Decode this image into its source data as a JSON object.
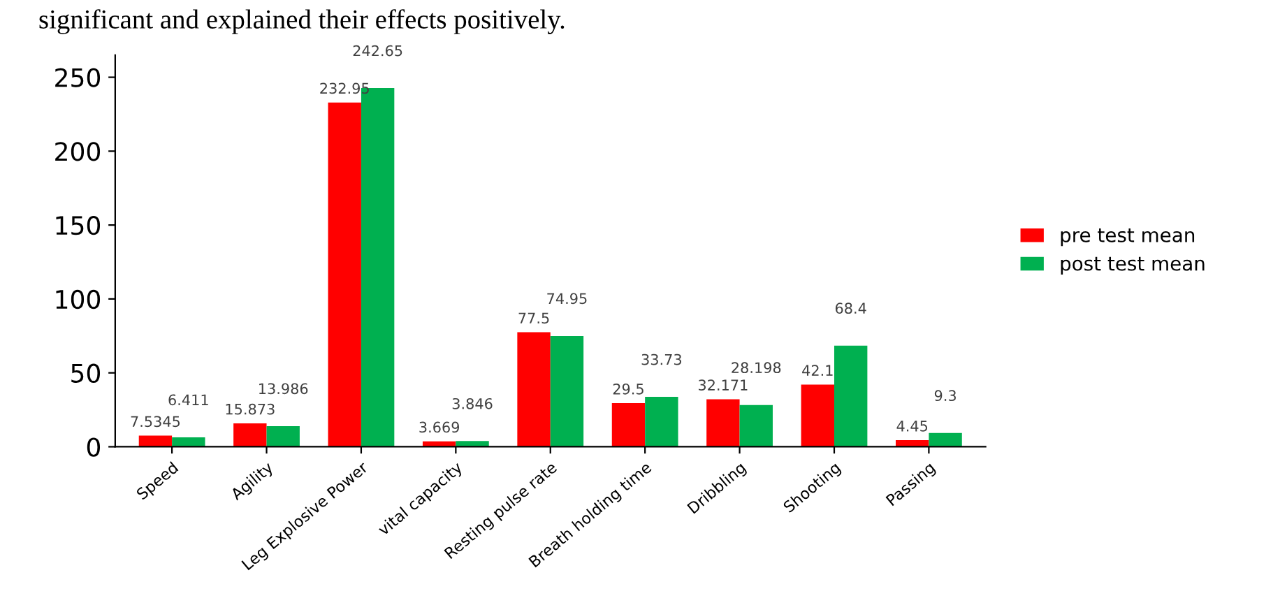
{
  "chart_data": {
    "type": "bar",
    "categories": [
      "Speed",
      "Agility",
      "Leg Explosive Power",
      "vital capacity",
      "Resting pulse rate",
      "Breath holding time",
      "Dribbling",
      "Shooting",
      "Passing"
    ],
    "series": [
      {
        "name": "pre test mean",
        "color": "#ff0000",
        "values": [
          7.5345,
          15.873,
          232.95,
          3.669,
          77.5,
          29.5,
          32.171,
          42.1,
          4.45
        ]
      },
      {
        "name": "post test mean",
        "color": "#00b050",
        "values": [
          6.411,
          13.986,
          242.65,
          3.846,
          74.95,
          33.73,
          28.198,
          68.4,
          9.3
        ]
      }
    ],
    "ylim": [
      0,
      265
    ],
    "yticks": [
      0,
      50,
      100,
      150,
      200,
      250
    ],
    "data_labels": true,
    "grid": false,
    "legend": "right",
    "annotations": [
      "significant and explained their effects positively."
    ]
  }
}
